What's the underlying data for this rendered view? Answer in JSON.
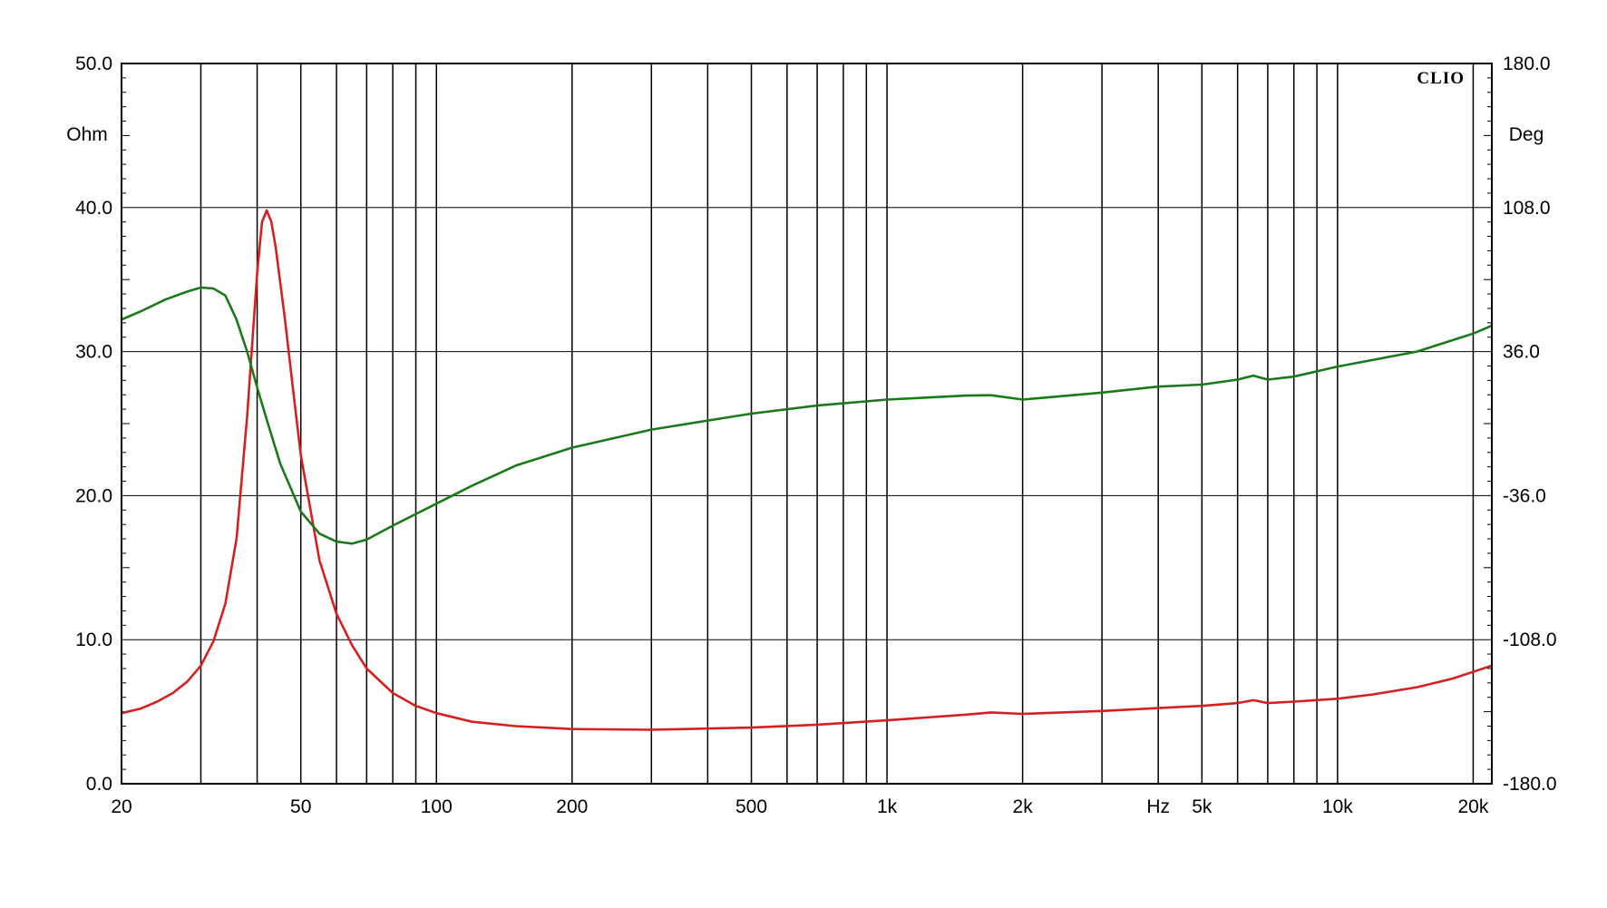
{
  "chart_data": {
    "type": "line",
    "brand": "CLIO",
    "x_axis": {
      "scale": "log",
      "range": [
        20,
        22000
      ],
      "unit_label": "Hz",
      "tick_labels": [
        {
          "value": 20,
          "label": "20"
        },
        {
          "value": 50,
          "label": "50"
        },
        {
          "value": 100,
          "label": "100"
        },
        {
          "value": 200,
          "label": "200"
        },
        {
          "value": 500,
          "label": "500"
        },
        {
          "value": 1000,
          "label": "1k"
        },
        {
          "value": 2000,
          "label": "2k"
        },
        {
          "value": 5000,
          "label": "5k"
        },
        {
          "value": 10000,
          "label": "10k"
        },
        {
          "value": 20000,
          "label": "20k"
        }
      ],
      "unit_position_value": 4000,
      "gridlines": [
        30,
        40,
        50,
        60,
        70,
        80,
        90,
        100,
        200,
        300,
        400,
        500,
        600,
        700,
        800,
        900,
        1000,
        2000,
        3000,
        4000,
        5000,
        6000,
        7000,
        8000,
        9000,
        10000,
        20000
      ]
    },
    "y_left": {
      "label": "Ohm",
      "range": [
        0,
        50
      ],
      "tick_labels": [
        "0.0",
        "10.0",
        "20.0",
        "30.0",
        "40.0",
        "50.0"
      ]
    },
    "y_right": {
      "label": "Deg",
      "range": [
        -180,
        180
      ],
      "tick_labels": [
        "-180.0",
        "-108.0",
        "-36.0",
        "36.0",
        "108.0",
        "180.0"
      ]
    },
    "grid": true,
    "series": [
      {
        "color": "#d42020",
        "axis": "left",
        "points": [
          [
            20,
            4.9
          ],
          [
            22,
            5.2
          ],
          [
            24,
            5.7
          ],
          [
            26,
            6.3
          ],
          [
            28,
            7.1
          ],
          [
            30,
            8.2
          ],
          [
            32,
            9.9
          ],
          [
            34,
            12.5
          ],
          [
            36,
            17.0
          ],
          [
            38,
            25.5
          ],
          [
            40,
            35.5
          ],
          [
            41,
            39.0
          ],
          [
            42,
            39.8
          ],
          [
            43,
            39.0
          ],
          [
            44,
            37.2
          ],
          [
            46,
            32.5
          ],
          [
            48,
            27.5
          ],
          [
            50,
            22.8
          ],
          [
            55,
            15.5
          ],
          [
            60,
            11.8
          ],
          [
            65,
            9.6
          ],
          [
            70,
            8.0
          ],
          [
            80,
            6.3
          ],
          [
            90,
            5.4
          ],
          [
            100,
            4.9
          ],
          [
            120,
            4.3
          ],
          [
            150,
            4.0
          ],
          [
            200,
            3.8
          ],
          [
            300,
            3.75
          ],
          [
            500,
            3.9
          ],
          [
            700,
            4.1
          ],
          [
            1000,
            4.4
          ],
          [
            1500,
            4.8
          ],
          [
            1700,
            4.95
          ],
          [
            2000,
            4.85
          ],
          [
            3000,
            5.05
          ],
          [
            4000,
            5.25
          ],
          [
            5000,
            5.4
          ],
          [
            6000,
            5.6
          ],
          [
            6500,
            5.8
          ],
          [
            7000,
            5.6
          ],
          [
            8000,
            5.7
          ],
          [
            10000,
            5.9
          ],
          [
            12000,
            6.2
          ],
          [
            15000,
            6.7
          ],
          [
            18000,
            7.3
          ],
          [
            22000,
            8.2
          ]
        ]
      },
      {
        "color": "#1a7a1a",
        "axis": "right",
        "points": [
          [
            20,
            52
          ],
          [
            22,
            56
          ],
          [
            25,
            62
          ],
          [
            28,
            66
          ],
          [
            30,
            68
          ],
          [
            32,
            67.5
          ],
          [
            34,
            64
          ],
          [
            36,
            52
          ],
          [
            38,
            36
          ],
          [
            40,
            18
          ],
          [
            42,
            2
          ],
          [
            45,
            -20
          ],
          [
            50,
            -44
          ],
          [
            55,
            -55
          ],
          [
            60,
            -59
          ],
          [
            65,
            -60
          ],
          [
            70,
            -58
          ],
          [
            80,
            -51
          ],
          [
            100,
            -40
          ],
          [
            120,
            -31
          ],
          [
            150,
            -21
          ],
          [
            200,
            -12
          ],
          [
            300,
            -3
          ],
          [
            500,
            5
          ],
          [
            700,
            9
          ],
          [
            1000,
            12
          ],
          [
            1500,
            14
          ],
          [
            1700,
            14.2
          ],
          [
            2000,
            12
          ],
          [
            3000,
            15.5
          ],
          [
            4000,
            18.5
          ],
          [
            5000,
            19.5
          ],
          [
            6000,
            22
          ],
          [
            6500,
            24
          ],
          [
            7000,
            22
          ],
          [
            8000,
            23.5
          ],
          [
            10000,
            28.5
          ],
          [
            15000,
            36
          ],
          [
            20000,
            45
          ],
          [
            22000,
            49
          ]
        ]
      }
    ]
  }
}
